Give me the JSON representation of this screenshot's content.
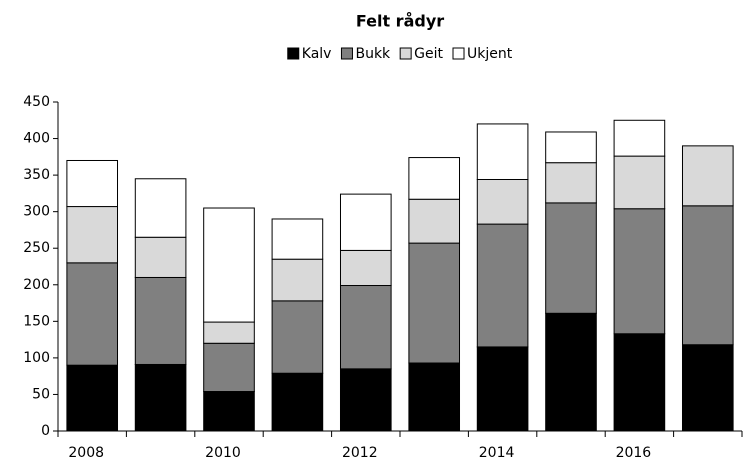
{
  "chart_data": {
    "type": "stacked_bar",
    "title": "Felt rådyr",
    "categories": [
      "2008",
      null,
      "2010",
      null,
      "2012",
      null,
      "2014",
      null,
      "2016",
      null
    ],
    "series": [
      {
        "name": "Kalv",
        "color": "#000000",
        "values": [
          90,
          91,
          54,
          79,
          85,
          93,
          115,
          161,
          133,
          118
        ]
      },
      {
        "name": "Bukk",
        "color": "#808080",
        "values": [
          140,
          119,
          66,
          99,
          114,
          164,
          168,
          151,
          171,
          190
        ]
      },
      {
        "name": "Geit",
        "color": "#d9d9d9",
        "values": [
          77,
          55,
          29,
          57,
          48,
          60,
          61,
          55,
          72,
          82
        ]
      },
      {
        "name": "Ukjent",
        "color": "#ffffff",
        "values": [
          63,
          80,
          156,
          55,
          77,
          57,
          76,
          42,
          49,
          0
        ]
      }
    ],
    "ylim": [
      0,
      450
    ],
    "yticks": [
      0,
      50,
      100,
      150,
      200,
      250,
      300,
      350,
      400,
      450
    ],
    "legend": "top"
  }
}
